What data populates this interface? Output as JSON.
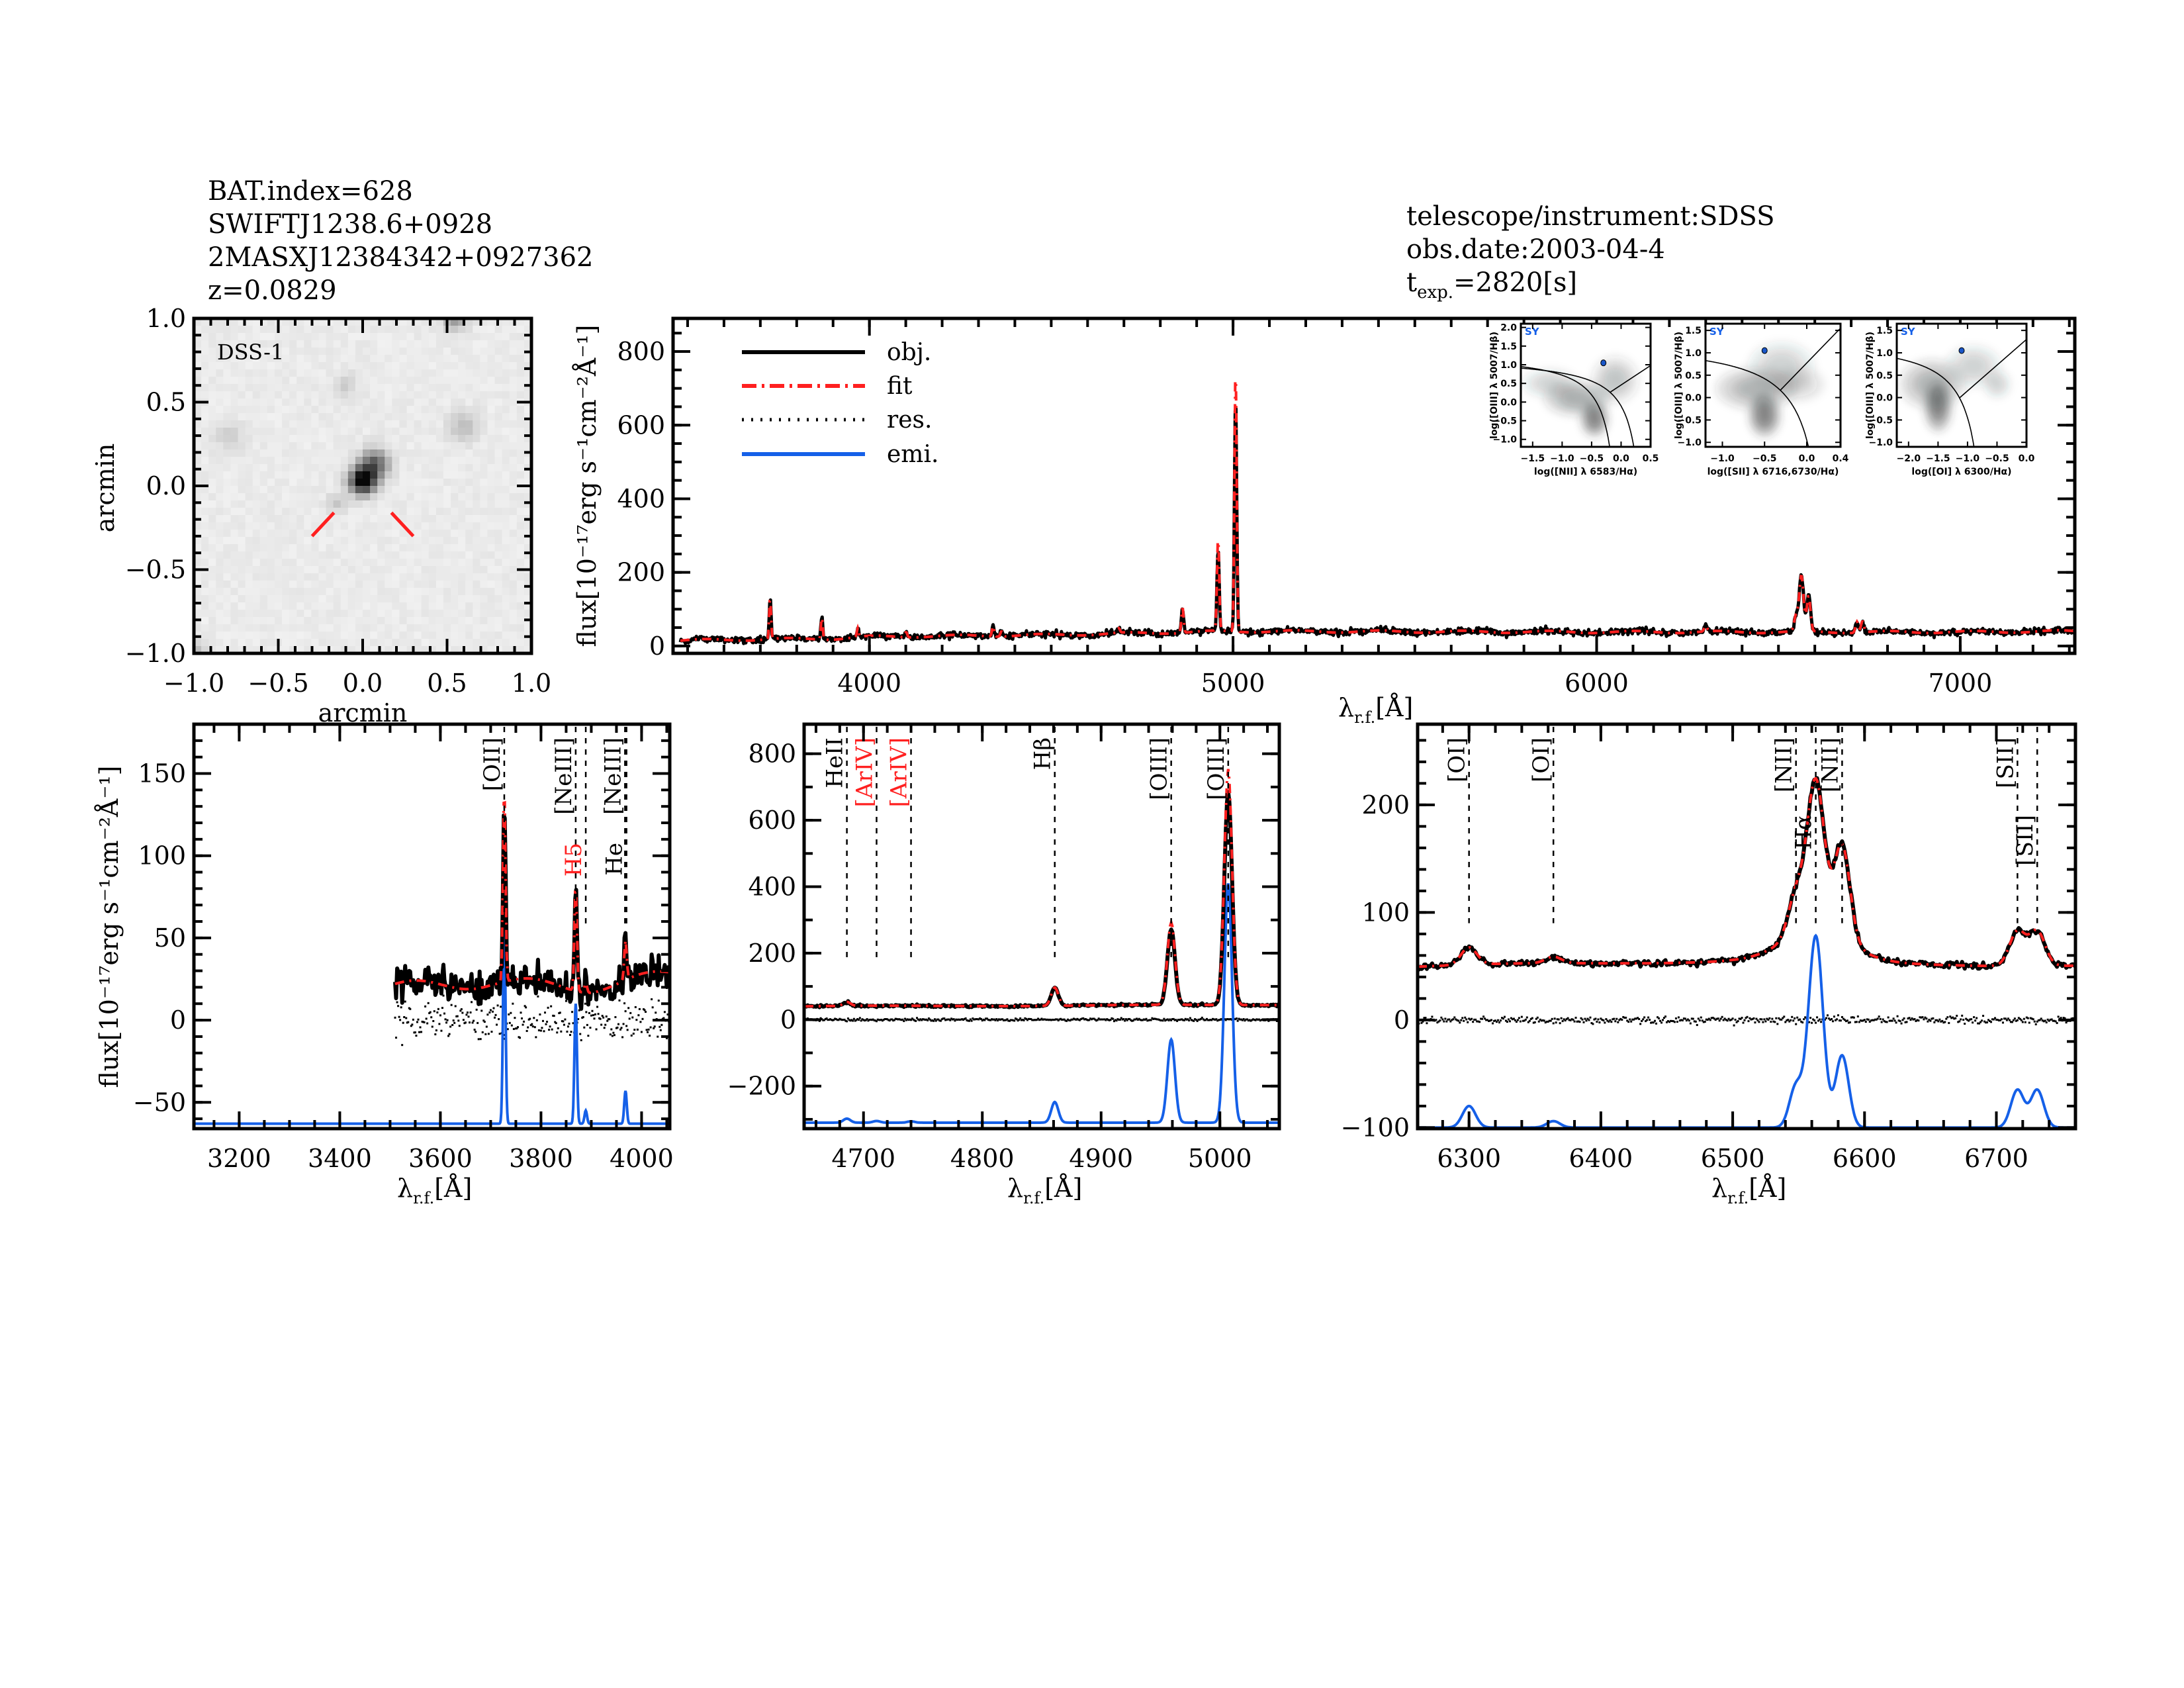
{
  "header": {
    "bat_index": "BAT.index=628",
    "swift_name": "SWIFTJ1238.6+0928",
    "twomass_name": "2MASXJ12384342+0927362",
    "redshift": "z=0.0829",
    "telescope": "telescope/instrument:SDSS",
    "obs_date": "obs.date:2003-04-4",
    "texp_t": "t",
    "texp_sub": "exp.",
    "texp_value": "=2820[s]"
  },
  "axis_labels": {
    "flux": "flux[10⁻¹⁷erg s⁻¹cm⁻²Å⁻¹]",
    "lambda": "λ",
    "lambda_sub": "r.f.",
    "lambda_unit": "[Å]"
  },
  "colors": {
    "obj": "#000000",
    "fit": "#ff2020",
    "res": "#000000",
    "emi": "#1560e8",
    "marker_red": "#ff2020",
    "sy_label": "#1560e8",
    "bpt_point": "#1a56c8"
  },
  "dss": {
    "label": "DSS-1",
    "xlabel": "arcmin",
    "ylabel": "arcmin",
    "xlim": [
      -1.0,
      1.0
    ],
    "ylim": [
      -1.0,
      1.0
    ],
    "ticks": [
      -1.0,
      -0.5,
      0.0,
      0.5,
      1.0
    ],
    "tick_labels": [
      "−1.0",
      "−0.5",
      "0.0",
      "0.5",
      "1.0"
    ]
  },
  "legend": [
    {
      "label": "obj.",
      "series": "obj",
      "style": "solid"
    },
    {
      "label": "fit",
      "series": "fit",
      "style": "dash-dot"
    },
    {
      "label": "res.",
      "series": "res",
      "style": "dotted"
    },
    {
      "label": "emi.",
      "series": "emi",
      "style": "solid"
    }
  ],
  "chart_data": [
    {
      "id": "full-spectrum",
      "type": "line",
      "xlim": [
        3460,
        7315
      ],
      "ylim": [
        -20,
        890
      ],
      "xticks": [
        4000,
        5000,
        6000,
        7000
      ],
      "xtick_labels": [
        "4000",
        "5000",
        "6000",
        "7000"
      ],
      "yticks": [
        0,
        200,
        400,
        600,
        800
      ],
      "ytick_labels": [
        "0",
        "200",
        "400",
        "600",
        "800"
      ],
      "data_start": 3480,
      "continuum": [
        [
          3480,
          15
        ],
        [
          3700,
          18
        ],
        [
          3900,
          20
        ],
        [
          4000,
          25
        ],
        [
          4300,
          28
        ],
        [
          4500,
          30
        ],
        [
          5000,
          40
        ],
        [
          6000,
          38
        ],
        [
          7000,
          38
        ],
        [
          7315,
          40
        ]
      ],
      "lines": [
        {
          "center": 3727,
          "sigma": 2.5,
          "obj": 112,
          "fit": 112
        },
        {
          "center": 3869,
          "sigma": 2.5,
          "obj": 62,
          "fit": 62
        },
        {
          "center": 3968,
          "sigma": 2.5,
          "obj": 24,
          "fit": 24
        },
        {
          "center": 4101,
          "sigma": 3,
          "obj": 14,
          "fit": 14
        },
        {
          "center": 4340,
          "sigma": 3,
          "obj": 28,
          "fit": 28
        },
        {
          "center": 4363,
          "sigma": 3,
          "obj": 14,
          "fit": 14
        },
        {
          "center": 4686,
          "sigma": 3,
          "obj": 12,
          "fit": 12
        },
        {
          "center": 4861,
          "sigma": 3,
          "obj": 68,
          "fit": 68
        },
        {
          "center": 4959,
          "sigma": 3,
          "obj": 225,
          "fit": 255
        },
        {
          "center": 5007,
          "sigma": 3,
          "obj": 640,
          "fit": 720
        },
        {
          "center": 6300,
          "sigma": 4,
          "obj": 15,
          "fit": 15
        },
        {
          "center": 6548,
          "sigma": 5,
          "obj": 40,
          "fit": 40
        },
        {
          "center": 6563,
          "sigma": 6,
          "obj": 150,
          "fit": 150
        },
        {
          "center": 6583,
          "sigma": 5,
          "obj": 95,
          "fit": 95
        },
        {
          "center": 6716,
          "sigma": 4,
          "obj": 30,
          "fit": 30
        },
        {
          "center": 6731,
          "sigma": 4,
          "obj": 30,
          "fit": 30
        }
      ]
    },
    {
      "id": "oii-neiii-region",
      "type": "line",
      "xlim": [
        3110,
        4056
      ],
      "ylim": [
        -66,
        180
      ],
      "xticks": [
        3200,
        3400,
        3600,
        3800,
        4000
      ],
      "xtick_labels": [
        "3200",
        "3400",
        "3600",
        "3800",
        "4000"
      ],
      "yticks": [
        -50,
        0,
        50,
        100,
        150
      ],
      "ytick_labels": [
        "−50",
        "0",
        "50",
        "100",
        "150"
      ],
      "data_start": 3510,
      "continuum": [
        [
          3510,
          20
        ],
        [
          3700,
          23
        ],
        [
          3900,
          20
        ],
        [
          3950,
          22
        ],
        [
          4056,
          28
        ]
      ],
      "lines": [
        {
          "center": 3727,
          "sigma": 2.5,
          "obj": 118,
          "fit": 118
        },
        {
          "center": 3869,
          "sigma": 2.5,
          "obj": 65,
          "fit": 65
        },
        {
          "center": 3889,
          "sigma": 2.5,
          "obj": 6,
          "fit": 6
        },
        {
          "center": 3968,
          "sigma": 2.5,
          "obj": 24,
          "fit": 24
        }
      ],
      "emission": {
        "baseline": -63,
        "components": [
          {
            "center": 3727,
            "sigma": 2.5,
            "peak": 123
          },
          {
            "center": 3869,
            "sigma": 2.5,
            "peak": 73
          },
          {
            "center": 3889,
            "sigma": 2.5,
            "peak": 8
          },
          {
            "center": 3968,
            "sigma": 2.5,
            "peak": 20
          }
        ]
      },
      "markers": [
        {
          "label": "[OII]",
          "wavelength": 3727,
          "color": "#000000"
        },
        {
          "label": "[NeIII]",
          "wavelength": 3869,
          "color": "#000000"
        },
        {
          "label": "H5",
          "wavelength": 3889,
          "color": "#ff2020"
        },
        {
          "label": "[NeIII]",
          "wavelength": 3967,
          "color": "#000000"
        },
        {
          "label": "He",
          "wavelength": 3970,
          "color": "#000000"
        }
      ]
    },
    {
      "id": "hbeta-oiii-region",
      "type": "line",
      "xlim": [
        4650,
        5050
      ],
      "ylim": [
        -328,
        889
      ],
      "xticks": [
        4700,
        4800,
        4900,
        5000
      ],
      "xtick_labels": [
        "4700",
        "4800",
        "4900",
        "5000"
      ],
      "yticks": [
        -200,
        0,
        200,
        400,
        600,
        800
      ],
      "ytick_labels": [
        "−200",
        "0",
        "200",
        "400",
        "600",
        "800"
      ],
      "data_start": 4650,
      "continuum": [
        [
          4650,
          40
        ],
        [
          4850,
          42
        ],
        [
          5050,
          45
        ]
      ],
      "lines": [
        {
          "center": 4686,
          "sigma": 3,
          "obj": 12,
          "fit": 12
        },
        {
          "center": 4861,
          "sigma": 3,
          "obj": 55,
          "fit": 55
        },
        {
          "center": 4959,
          "sigma": 3.2,
          "obj": 228,
          "fit": 248
        },
        {
          "center": 5007,
          "sigma": 3.2,
          "obj": 640,
          "fit": 710
        }
      ],
      "emission": {
        "baseline": -310,
        "components": [
          {
            "center": 4686,
            "sigma": 3,
            "peak": 12
          },
          {
            "center": 4711,
            "sigma": 3,
            "peak": 5
          },
          {
            "center": 4740,
            "sigma": 3,
            "peak": 4
          },
          {
            "center": 4861,
            "sigma": 3,
            "peak": 62
          },
          {
            "center": 4959,
            "sigma": 3.2,
            "peak": 250
          },
          {
            "center": 5007,
            "sigma": 3.2,
            "peak": 720
          }
        ]
      },
      "markers": [
        {
          "label": "HeII",
          "wavelength": 4686,
          "color": "#000000"
        },
        {
          "label": "[ArIV]",
          "wavelength": 4711,
          "color": "#ff2020"
        },
        {
          "label": "[ArIV]",
          "wavelength": 4740,
          "color": "#ff2020"
        },
        {
          "label": "Hβ",
          "wavelength": 4861,
          "color": "#000000"
        },
        {
          "label": "[OIII]",
          "wavelength": 4959,
          "color": "#000000"
        },
        {
          "label": "[OIII]",
          "wavelength": 5007,
          "color": "#000000"
        }
      ]
    },
    {
      "id": "halpha-nii-sii-region",
      "type": "line",
      "xlim": [
        6261,
        6760
      ],
      "ylim": [
        -101,
        275
      ],
      "xticks": [
        6300,
        6400,
        6500,
        6600,
        6700
      ],
      "xtick_labels": [
        "6300",
        "6400",
        "6500",
        "6600",
        "6700"
      ],
      "yticks": [
        -100,
        0,
        100,
        200
      ],
      "ytick_labels": [
        "−100",
        "0",
        "100",
        "200"
      ],
      "data_start": 6261,
      "continuum": [
        [
          6261,
          50
        ],
        [
          6500,
          55
        ],
        [
          6760,
          50
        ]
      ],
      "lines": [
        {
          "center": 6300,
          "sigma": 6,
          "obj": 16,
          "fit": 16
        },
        {
          "center": 6364,
          "sigma": 6,
          "obj": 6,
          "fit": 6
        },
        {
          "center": 6548,
          "sigma": 6,
          "obj": 38,
          "fit": 38
        },
        {
          "center": 6563,
          "sigma": 6.5,
          "obj": 140,
          "fit": 140
        },
        {
          "center": 6563,
          "sigma": 25,
          "obj": 28,
          "fit": 28
        },
        {
          "center": 6583,
          "sigma": 6,
          "obj": 88,
          "fit": 88
        },
        {
          "center": 6716,
          "sigma": 6,
          "obj": 32,
          "fit": 32
        },
        {
          "center": 6731,
          "sigma": 6,
          "obj": 32,
          "fit": 32
        }
      ],
      "emission": {
        "baseline": -100,
        "components": [
          {
            "center": 6300,
            "sigma": 5,
            "peak": 20
          },
          {
            "center": 6364,
            "sigma": 5,
            "peak": 6
          },
          {
            "center": 6548,
            "sigma": 5,
            "peak": 38
          },
          {
            "center": 6563,
            "sigma": 5.5,
            "peak": 178
          },
          {
            "center": 6583,
            "sigma": 5,
            "peak": 67
          },
          {
            "center": 6716,
            "sigma": 5,
            "peak": 35
          },
          {
            "center": 6731,
            "sigma": 5,
            "peak": 35
          }
        ]
      },
      "markers": [
        {
          "label": "[OI]",
          "wavelength": 6300,
          "color": "#000000"
        },
        {
          "label": "[OI]",
          "wavelength": 6364,
          "color": "#000000"
        },
        {
          "label": "[NII]",
          "wavelength": 6548,
          "color": "#000000"
        },
        {
          "label": "Hα",
          "wavelength": 6563,
          "color": "#000000"
        },
        {
          "label": "[NII]",
          "wavelength": 6583,
          "color": "#000000"
        },
        {
          "label": "[SII]",
          "wavelength": 6716,
          "color": "#000000"
        },
        {
          "label": "[SII]",
          "wavelength": 6731,
          "color": "#000000"
        }
      ]
    },
    {
      "id": "bpt-nii",
      "type": "scatter",
      "class_label": "SY",
      "xlim": [
        -1.7,
        0.5
      ],
      "ylim": [
        -1.2,
        2.1
      ],
      "xticks": [
        -1.5,
        -1.0,
        -0.5,
        0.0,
        0.5
      ],
      "xtick_labels": [
        "−1.5",
        "−1.0",
        "−0.5",
        "0.0",
        "0.5"
      ],
      "yticks": [
        -1.0,
        -0.5,
        0.0,
        0.5,
        1.0,
        1.5,
        2.0
      ],
      "ytick_labels": [
        "−1.0",
        "−0.5",
        "0.0",
        "0.5",
        "1.0",
        "1.5",
        "2.0"
      ],
      "xlabel": "log([NII] λ 6583/Hα)",
      "ylabel": "log([OIII] λ 5007/Hβ)",
      "point": [
        -0.3,
        1.05
      ],
      "density": [
        {
          "x": -0.45,
          "y": -0.45,
          "sx": 0.15,
          "sy": 0.3,
          "w": 0.9
        },
        {
          "x": -0.75,
          "y": 0.1,
          "sx": 0.35,
          "sy": 0.3,
          "w": 0.55
        },
        {
          "x": -1.2,
          "y": 0.5,
          "sx": 0.3,
          "sy": 0.25,
          "w": 0.3
        },
        {
          "x": -0.1,
          "y": 0.6,
          "sx": 0.25,
          "sy": 0.4,
          "w": 0.35
        }
      ]
    },
    {
      "id": "bpt-sii",
      "type": "scatter",
      "class_label": "SY",
      "xlim": [
        -1.2,
        0.4
      ],
      "ylim": [
        -1.1,
        1.65
      ],
      "xticks": [
        -1.0,
        -0.5,
        0.0,
        0.4
      ],
      "xtick_labels": [
        "−1.0",
        "−0.5",
        "0.0",
        "0.4"
      ],
      "yticks": [
        -1.0,
        -0.5,
        0.0,
        0.5,
        1.0,
        1.5
      ],
      "ytick_labels": [
        "−1.0",
        "−0.5",
        "0.0",
        "0.5",
        "1.0",
        "1.5"
      ],
      "xlabel": "log([SII] λ 6716,6730/Hα)",
      "ylabel": "log([OIII] λ 5007/Hβ)",
      "point": [
        -0.5,
        1.05
      ],
      "density": [
        {
          "x": -0.5,
          "y": -0.4,
          "sx": 0.12,
          "sy": 0.3,
          "w": 0.9
        },
        {
          "x": -0.6,
          "y": 0.2,
          "sx": 0.3,
          "sy": 0.3,
          "w": 0.5
        },
        {
          "x": -0.3,
          "y": 0.7,
          "sx": 0.25,
          "sy": 0.35,
          "w": 0.3
        },
        {
          "x": -0.1,
          "y": 0.3,
          "sx": 0.2,
          "sy": 0.25,
          "w": 0.25
        }
      ]
    },
    {
      "id": "bpt-oi",
      "type": "scatter",
      "class_label": "SY",
      "xlim": [
        -2.2,
        0.0
      ],
      "ylim": [
        -1.1,
        1.65
      ],
      "xticks": [
        -2.0,
        -1.5,
        -1.0,
        -0.5,
        0.0
      ],
      "xtick_labels": [
        "−2.0",
        "−1.5",
        "−1.0",
        "−0.5",
        "0.0"
      ],
      "yticks": [
        -1.0,
        -0.5,
        0.0,
        0.5,
        1.0,
        1.5
      ],
      "ytick_labels": [
        "−1.0",
        "−0.5",
        "0.0",
        "0.5",
        "1.0",
        "1.5"
      ],
      "xlabel": "log([OI] λ 6300/Hα)",
      "ylabel": "log([OIII] λ 5007/Hβ)",
      "point": [
        -1.1,
        1.05
      ],
      "density": [
        {
          "x": -1.5,
          "y": -0.2,
          "sx": 0.15,
          "sy": 0.35,
          "w": 0.9
        },
        {
          "x": -1.6,
          "y": 0.3,
          "sx": 0.35,
          "sy": 0.35,
          "w": 0.5
        },
        {
          "x": -0.9,
          "y": 0.7,
          "sx": 0.3,
          "sy": 0.3,
          "w": 0.3
        },
        {
          "x": -0.5,
          "y": 0.3,
          "sx": 0.15,
          "sy": 0.2,
          "w": 0.3
        }
      ]
    }
  ]
}
